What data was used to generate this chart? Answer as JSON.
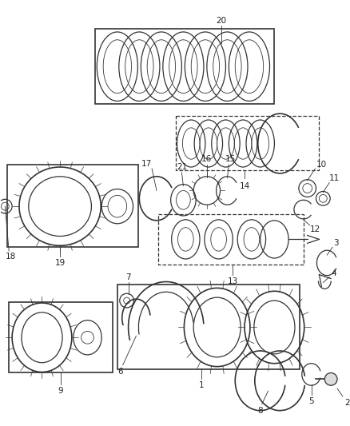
{
  "bg_color": "#ffffff",
  "line_color": "#333333",
  "annotation_color": "#222222",
  "lw_heavy": 1.2,
  "lw_med": 0.9,
  "lw_light": 0.6
}
